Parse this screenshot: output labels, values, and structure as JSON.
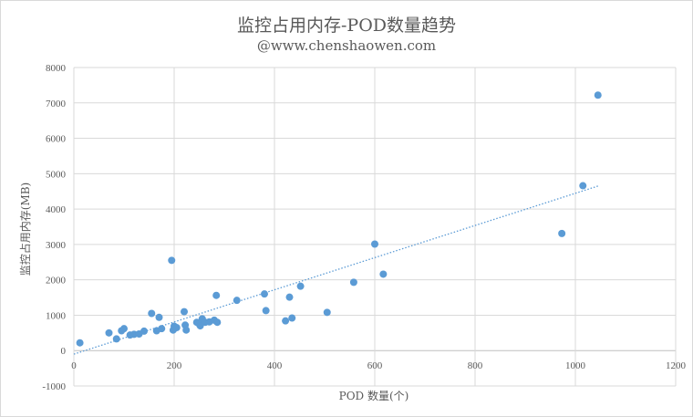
{
  "chart_data": {
    "type": "scatter",
    "title": "监控占用内存-POD数量趋势",
    "subtitle": "@www.chenshaowen.com",
    "xlabel": "POD 数量(个)",
    "ylabel": "监控占用内存(MB)",
    "xlim": [
      0,
      1200
    ],
    "ylim": [
      -1000,
      8000
    ],
    "x_ticks": [
      "0",
      "200",
      "400",
      "600",
      "800",
      "1000",
      "1200"
    ],
    "y_ticks": [
      "-1000",
      "0",
      "1000",
      "2000",
      "3000",
      "4000",
      "5000",
      "6000",
      "7000",
      "8000"
    ],
    "grid": true,
    "trendline": {
      "style": "dotted",
      "x": [
        0,
        1045
      ],
      "y": [
        -100,
        4650
      ]
    },
    "colors": {
      "points": "#5b9bd5",
      "trendline": "#5b9bd5",
      "grid": "#d9d9d9"
    },
    "points": [
      [
        12,
        220
      ],
      [
        70,
        500
      ],
      [
        85,
        330
      ],
      [
        95,
        560
      ],
      [
        100,
        620
      ],
      [
        112,
        440
      ],
      [
        120,
        460
      ],
      [
        130,
        470
      ],
      [
        140,
        550
      ],
      [
        155,
        1050
      ],
      [
        165,
        560
      ],
      [
        170,
        940
      ],
      [
        175,
        620
      ],
      [
        195,
        2550
      ],
      [
        198,
        580
      ],
      [
        200,
        690
      ],
      [
        205,
        650
      ],
      [
        220,
        1100
      ],
      [
        222,
        720
      ],
      [
        224,
        580
      ],
      [
        245,
        800
      ],
      [
        250,
        750
      ],
      [
        252,
        700
      ],
      [
        256,
        900
      ],
      [
        262,
        800
      ],
      [
        270,
        810
      ],
      [
        280,
        860
      ],
      [
        284,
        1560
      ],
      [
        286,
        800
      ],
      [
        325,
        1420
      ],
      [
        380,
        1600
      ],
      [
        383,
        1130
      ],
      [
        422,
        840
      ],
      [
        430,
        1510
      ],
      [
        435,
        920
      ],
      [
        452,
        1820
      ],
      [
        505,
        1080
      ],
      [
        558,
        1930
      ],
      [
        600,
        3010
      ],
      [
        617,
        2160
      ],
      [
        973,
        3310
      ],
      [
        1015,
        4660
      ],
      [
        1045,
        7220
      ]
    ]
  }
}
